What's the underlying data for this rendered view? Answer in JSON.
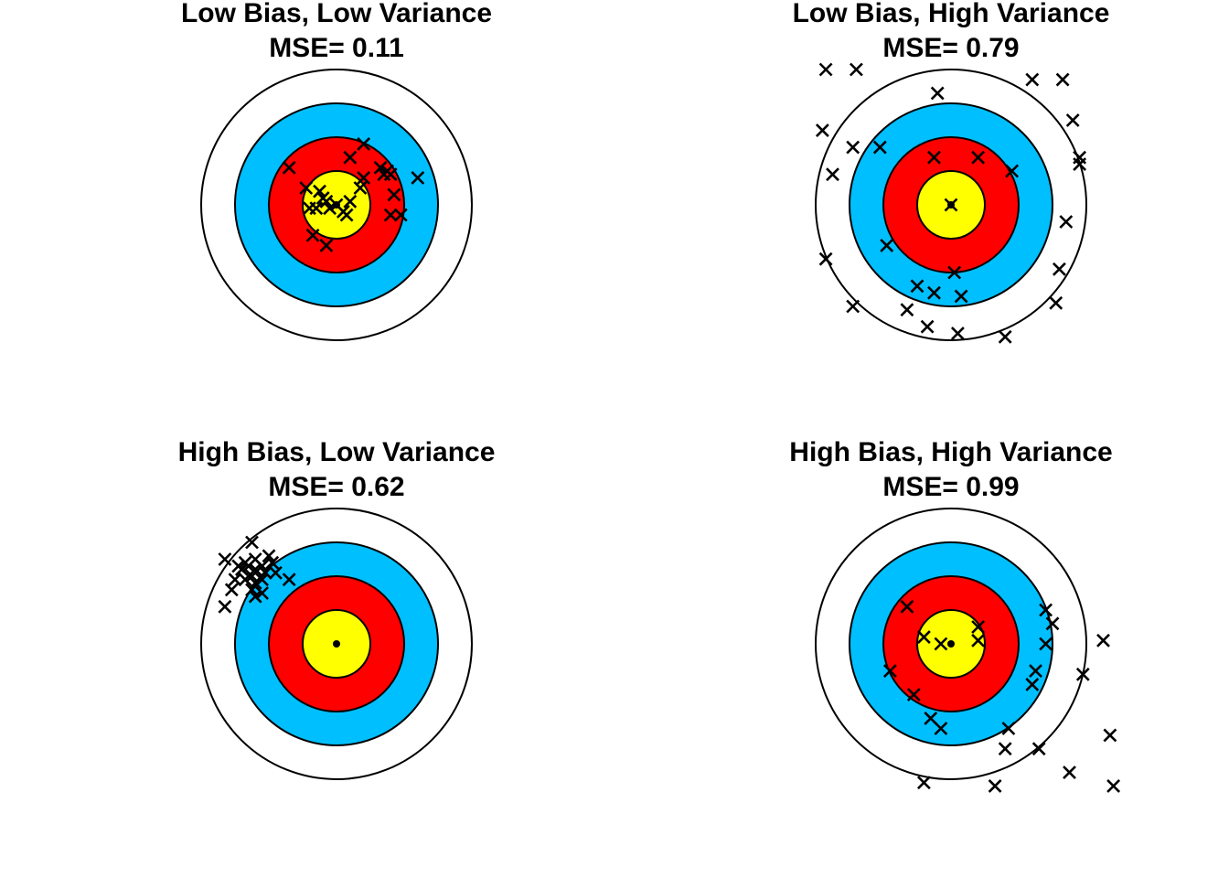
{
  "colors": {
    "outer_ring": "#ffffff",
    "ring_2": "#00bfff",
    "ring_3": "#ff0000",
    "ring_4": "#ffff00",
    "marker": "#000000"
  },
  "chart_data": [
    {
      "type": "scatter",
      "title": "Low Bias, Low Variance",
      "mse_label": "MSE= 0.11",
      "target": {
        "center": [
          0,
          0
        ],
        "ring_radii": [
          4,
          3,
          2,
          1
        ]
      },
      "marker": "x",
      "points": [
        [
          0.8,
          1.8
        ],
        [
          -1.4,
          1.1
        ],
        [
          0.4,
          1.4
        ],
        [
          1.3,
          1.1
        ],
        [
          1.4,
          0.9
        ],
        [
          1.5,
          1.0
        ],
        [
          1.6,
          0.9
        ],
        [
          2.4,
          0.8
        ],
        [
          0.8,
          0.8
        ],
        [
          -0.9,
          0.5
        ],
        [
          0.7,
          0.5
        ],
        [
          -0.5,
          0.4
        ],
        [
          1.7,
          0.3
        ],
        [
          -0.4,
          0.2
        ],
        [
          -0.3,
          0.1
        ],
        [
          -0.6,
          -0.1
        ],
        [
          0.4,
          0.1
        ],
        [
          0.0,
          0.0
        ],
        [
          -0.2,
          -0.1
        ],
        [
          0.2,
          -0.2
        ],
        [
          -0.8,
          -0.1
        ],
        [
          0.3,
          -0.3
        ],
        [
          1.6,
          -0.3
        ],
        [
          1.9,
          -0.3
        ],
        [
          -0.7,
          -0.9
        ],
        [
          -0.3,
          -1.2
        ]
      ]
    },
    {
      "type": "scatter",
      "title": "Low Bias, High Variance",
      "mse_label": "MSE= 0.79",
      "target": {
        "center": [
          0,
          0
        ],
        "ring_radii": [
          4,
          3,
          2,
          1
        ]
      },
      "marker": "x",
      "points": [
        [
          -3.7,
          4.0
        ],
        [
          -2.8,
          4.0
        ],
        [
          2.4,
          3.7
        ],
        [
          3.3,
          3.7
        ],
        [
          -0.4,
          3.3
        ],
        [
          3.6,
          2.5
        ],
        [
          -3.8,
          2.2
        ],
        [
          -2.9,
          1.7
        ],
        [
          -2.1,
          1.7
        ],
        [
          -0.5,
          1.4
        ],
        [
          0.8,
          1.4
        ],
        [
          1.8,
          1.0
        ],
        [
          3.8,
          1.4
        ],
        [
          3.8,
          1.2
        ],
        [
          -3.5,
          0.9
        ],
        [
          0.0,
          0.0
        ],
        [
          3.4,
          -0.5
        ],
        [
          -1.9,
          -1.2
        ],
        [
          -3.7,
          -1.6
        ],
        [
          3.2,
          -1.9
        ],
        [
          0.1,
          -2.0
        ],
        [
          -1.0,
          -2.4
        ],
        [
          -0.5,
          -2.6
        ],
        [
          0.3,
          -2.7
        ],
        [
          -2.9,
          -3.0
        ],
        [
          -1.3,
          -3.1
        ],
        [
          3.1,
          -2.9
        ],
        [
          -0.7,
          -3.6
        ],
        [
          0.2,
          -3.8
        ],
        [
          1.6,
          -3.9
        ]
      ]
    },
    {
      "type": "scatter",
      "title": "High Bias, Low Variance",
      "mse_label": "MSE= 0.62",
      "target": {
        "center": [
          0,
          0
        ],
        "ring_radii": [
          4,
          3,
          2,
          1
        ]
      },
      "marker": "x",
      "points": [
        [
          -2.5,
          3.0
        ],
        [
          -3.3,
          2.5
        ],
        [
          -2.0,
          2.6
        ],
        [
          -2.7,
          2.4
        ],
        [
          -2.4,
          2.5
        ],
        [
          -1.9,
          2.4
        ],
        [
          -2.6,
          2.3
        ],
        [
          -2.2,
          2.3
        ],
        [
          -2.9,
          2.3
        ],
        [
          -2.4,
          2.2
        ],
        [
          -2.1,
          2.1
        ],
        [
          -2.8,
          2.2
        ],
        [
          -1.8,
          2.1
        ],
        [
          -3.0,
          1.9
        ],
        [
          -2.5,
          2.0
        ],
        [
          -2.2,
          1.9
        ],
        [
          -2.7,
          1.9
        ],
        [
          -1.4,
          1.9
        ],
        [
          -2.4,
          1.8
        ],
        [
          -3.1,
          1.6
        ],
        [
          -2.5,
          1.6
        ],
        [
          -2.2,
          1.5
        ],
        [
          -2.4,
          1.4
        ],
        [
          -3.3,
          1.1
        ]
      ]
    },
    {
      "type": "scatter",
      "title": "High Bias, High Variance",
      "mse_label": "MSE= 0.99",
      "target": {
        "center": [
          0,
          0
        ],
        "ring_radii": [
          4,
          3,
          2,
          1
        ]
      },
      "marker": "x",
      "points": [
        [
          -1.3,
          1.1
        ],
        [
          2.8,
          1.0
        ],
        [
          3.0,
          0.6
        ],
        [
          0.8,
          0.5
        ],
        [
          -0.8,
          0.2
        ],
        [
          -0.3,
          0.0
        ],
        [
          0.8,
          0.1
        ],
        [
          2.8,
          0.0
        ],
        [
          4.5,
          0.1
        ],
        [
          -1.8,
          -0.8
        ],
        [
          2.5,
          -0.8
        ],
        [
          3.9,
          -0.9
        ],
        [
          2.4,
          -1.2
        ],
        [
          -1.1,
          -1.5
        ],
        [
          -0.6,
          -2.2
        ],
        [
          -0.3,
          -2.5
        ],
        [
          1.7,
          -2.5
        ],
        [
          4.7,
          -2.7
        ],
        [
          1.6,
          -3.1
        ],
        [
          2.6,
          -3.1
        ],
        [
          3.5,
          -3.8
        ],
        [
          -0.8,
          -4.1
        ],
        [
          1.3,
          -4.2
        ],
        [
          4.8,
          -4.2
        ]
      ]
    }
  ]
}
